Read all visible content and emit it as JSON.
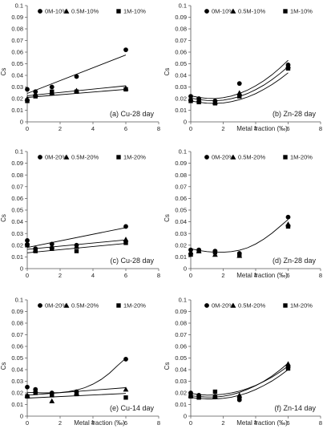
{
  "figure_type": "six-panel chart grid",
  "chart_data": [
    {
      "type": "scatter",
      "panel": "a",
      "annotation": "(a) Cu-28 day",
      "xlabel": "",
      "ylabel": "Cs",
      "xlim": [
        0,
        8
      ],
      "ylim": [
        0,
        0.1
      ],
      "xticks": [
        "0",
        "2",
        "4",
        "6",
        "8"
      ],
      "yticks": [
        "0",
        "0.01",
        "0.02",
        "0.03",
        "0.04",
        "0.05",
        "0.06",
        "0.07",
        "0.08",
        "0.09",
        "0.1"
      ],
      "legend_position": "top",
      "series": [
        {
          "name": "0M-10%",
          "marker": "circle",
          "x": [
            0,
            0.5,
            1.5,
            3,
            6
          ],
          "y": [
            0.028,
            0.026,
            0.03,
            0.039,
            0.062
          ],
          "trend": {
            "kind": "linear",
            "x": [
              0,
              6
            ],
            "y": [
              0.0245,
              0.0575
            ]
          }
        },
        {
          "name": "0.5M-10%",
          "marker": "triangle",
          "x": [
            0,
            0.5,
            1.5,
            3,
            6
          ],
          "y": [
            0.02,
            0.024,
            0.025,
            0.027,
            0.029
          ],
          "trend": {
            "kind": "linear",
            "x": [
              0,
              6
            ],
            "y": [
              0.0225,
              0.031
            ]
          }
        },
        {
          "name": "1M-10%",
          "marker": "square",
          "x": [
            0,
            0.5,
            1.5,
            3,
            6
          ],
          "y": [
            0.018,
            0.022,
            0.026,
            0.026,
            0.028
          ],
          "trend": {
            "kind": "linear",
            "x": [
              0,
              6
            ],
            "y": [
              0.021,
              0.028
            ]
          }
        }
      ]
    },
    {
      "type": "scatter",
      "panel": "b",
      "annotation": "(b) Zn-28 day",
      "xlabel": "Metal fraction (‰)",
      "ylabel": "Cs",
      "xlim": [
        0,
        8
      ],
      "ylim": [
        0,
        0.1
      ],
      "xticks": [
        "0",
        "2",
        "4",
        "6",
        "8"
      ],
      "yticks": [
        "0",
        "0.01",
        "0.02",
        "0.03",
        "0.04",
        "0.05",
        "0.06",
        "0.07",
        "0.08",
        "0.09",
        "0.1"
      ],
      "legend_position": "top",
      "series": [
        {
          "name": "0M-10%",
          "marker": "circle",
          "x": [
            0,
            0.5,
            1.5,
            3,
            6
          ],
          "y": [
            0.022,
            0.02,
            0.018,
            0.033,
            0.049
          ],
          "trend": {
            "kind": "polynomial",
            "x": [
              0,
              0.5,
              1,
              1.5,
              2,
              2.5,
              3,
              3.5,
              4,
              4.5,
              5,
              5.5,
              6
            ],
            "y": [
              0.0225,
              0.021,
              0.0202,
              0.0201,
              0.0208,
              0.0222,
              0.0244,
              0.0273,
              0.031,
              0.0354,
              0.0405,
              0.0464,
              0.053
            ]
          }
        },
        {
          "name": "0.5M-10%",
          "marker": "triangle",
          "x": [
            0,
            0.5,
            1.5,
            3,
            6
          ],
          "y": [
            0.02,
            0.019,
            0.017,
            0.025,
            0.048
          ],
          "trend": {
            "kind": "polynomial",
            "x": [
              0,
              0.5,
              1,
              1.5,
              2,
              2.5,
              3,
              3.5,
              4,
              4.5,
              5,
              5.5,
              6
            ],
            "y": [
              0.0205,
              0.0192,
              0.0184,
              0.0182,
              0.0187,
              0.0199,
              0.0218,
              0.0244,
              0.0277,
              0.0316,
              0.0363,
              0.0416,
              0.0475
            ]
          }
        },
        {
          "name": "1M-10%",
          "marker": "square",
          "x": [
            0,
            0.5,
            1.5,
            3,
            6
          ],
          "y": [
            0.018,
            0.017,
            0.016,
            0.022,
            0.046
          ],
          "trend": {
            "kind": "polynomial",
            "x": [
              0,
              0.5,
              1,
              1.5,
              2,
              2.5,
              3,
              3.5,
              4,
              4.5,
              5,
              5.5,
              6
            ],
            "y": [
              0.018,
              0.0168,
              0.0161,
              0.0159,
              0.0163,
              0.0174,
              0.0191,
              0.0214,
              0.0243,
              0.0279,
              0.0321,
              0.0368,
              0.0422
            ]
          }
        }
      ]
    },
    {
      "type": "scatter",
      "panel": "c",
      "annotation": "(c) Cu-28 day",
      "xlabel": "",
      "ylabel": "Cs",
      "xlim": [
        0,
        8
      ],
      "ylim": [
        0,
        0.1
      ],
      "xticks": [
        "0",
        "2",
        "4",
        "6",
        "8"
      ],
      "yticks": [
        "0",
        "0.01",
        "0.02",
        "0.03",
        "0.04",
        "0.05",
        "0.06",
        "0.07",
        "0.08",
        "0.09",
        "0.1"
      ],
      "legend_position": "top",
      "series": [
        {
          "name": "0M-20%",
          "marker": "circle",
          "x": [
            0,
            0.5,
            1.5,
            3,
            6
          ],
          "y": [
            0.024,
            0.017,
            0.021,
            0.02,
            0.036
          ],
          "trend": {
            "kind": "linear",
            "x": [
              0,
              6
            ],
            "y": [
              0.018,
              0.035
            ]
          }
        },
        {
          "name": "0.5M-20%",
          "marker": "triangle",
          "x": [
            0,
            0.5,
            1.5,
            3,
            6
          ],
          "y": [
            0.022,
            0.016,
            0.019,
            0.019,
            0.025
          ],
          "trend": {
            "kind": "linear",
            "x": [
              0,
              6
            ],
            "y": [
              0.0165,
              0.0245
            ]
          }
        },
        {
          "name": "1M-20%",
          "marker": "square",
          "x": [
            0,
            0.5,
            1.5,
            3,
            6
          ],
          "y": [
            0.02,
            0.015,
            0.017,
            0.015,
            0.022
          ],
          "trend": {
            "kind": "linear",
            "x": [
              0,
              6
            ],
            "y": [
              0.0135,
              0.0215
            ]
          }
        }
      ]
    },
    {
      "type": "scatter",
      "panel": "d",
      "annotation": "(d) Zn-28 day",
      "xlabel": "Metal fraction (‰)",
      "ylabel": "Cs",
      "xlim": [
        0,
        8
      ],
      "ylim": [
        0,
        0.1
      ],
      "xticks": [
        "0",
        "2",
        "4",
        "6",
        "8"
      ],
      "yticks": [
        "0",
        "0.01",
        "0.02",
        "0.03",
        "0.04",
        "0.05",
        "0.06",
        "0.07",
        "0.08",
        "0.09",
        "0.1"
      ],
      "legend_position": "top",
      "series": [
        {
          "name": "0M-20%",
          "marker": "circle",
          "x": [
            0,
            0.5,
            1.5,
            3,
            6
          ],
          "y": [
            0.016,
            0.016,
            0.015,
            0.013,
            0.044
          ],
          "trend": {
            "kind": "polynomial",
            "x": [
              0,
              0.5,
              1,
              1.5,
              2,
              2.5,
              3,
              3.5,
              4,
              4.5,
              5,
              5.5,
              6
            ],
            "y": [
              0.017,
              0.0155,
              0.0145,
              0.014,
              0.014,
              0.0145,
              0.0157,
              0.0178,
              0.021,
              0.0252,
              0.0302,
              0.036,
              0.042
            ]
          }
        },
        {
          "name": "0.5M-20%",
          "marker": "triangle",
          "x": [
            0,
            0.5,
            1.5,
            3,
            6
          ],
          "y": [
            0.014,
            0.015,
            0.012,
            0.011,
            0.038
          ],
          "trend": null
        },
        {
          "name": "1M-20%",
          "marker": "square",
          "x": [
            0,
            0.5,
            1.5,
            3,
            6
          ],
          "y": [
            0.012,
            0.015,
            0.014,
            0.012,
            0.036
          ],
          "trend": null
        }
      ]
    },
    {
      "type": "scatter",
      "panel": "e",
      "annotation": "(e) Cu-14 day",
      "xlabel": "Metal fraction (‰)",
      "ylabel": "Cs",
      "xlim": [
        0,
        8
      ],
      "ylim": [
        0,
        0.1
      ],
      "xticks": [
        "0",
        "2",
        "4",
        "6",
        "8"
      ],
      "yticks": [
        "0",
        "0.01",
        "0.02",
        "0.03",
        "0.04",
        "0.05",
        "0.06",
        "0.07",
        "0.08",
        "0.09",
        "0.1"
      ],
      "legend_position": "top",
      "series": [
        {
          "name": "0M-20%",
          "marker": "circle",
          "x": [
            0,
            0.5,
            1.5,
            3,
            6
          ],
          "y": [
            0.025,
            0.023,
            0.02,
            0.021,
            0.049
          ],
          "trend": {
            "kind": "polynomial",
            "x": [
              0,
              0.5,
              1,
              1.5,
              2,
              2.5,
              3,
              3.5,
              4,
              4.5,
              5,
              5.5,
              6
            ],
            "y": [
              0.0205,
              0.0202,
              0.02,
              0.02,
              0.0203,
              0.0211,
              0.0224,
              0.0245,
              0.0275,
              0.0316,
              0.0369,
              0.0436,
              0.0498
            ]
          }
        },
        {
          "name": "0.5M-20%",
          "marker": "triangle",
          "x": [
            0,
            0.5,
            1.5,
            3,
            6
          ],
          "y": [
            0.018,
            0.022,
            0.013,
            0.02,
            0.023
          ],
          "trend": {
            "kind": "linear",
            "x": [
              0,
              6
            ],
            "y": [
              0.018,
              0.0245
            ]
          }
        },
        {
          "name": "1M-20%",
          "marker": "square",
          "x": [
            0,
            0.5,
            1.5,
            3,
            6
          ],
          "y": [
            0.017,
            0.02,
            0.018,
            0.019,
            0.016
          ],
          "trend": {
            "kind": "linear",
            "x": [
              0,
              6
            ],
            "y": [
              0.0155,
              0.0195
            ]
          }
        }
      ]
    },
    {
      "type": "scatter",
      "panel": "f",
      "annotation": "(f) Zn-14 day",
      "xlabel": "Metal fraction (‰)",
      "ylabel": "Cs",
      "xlim": [
        0,
        8
      ],
      "ylim": [
        0,
        0.1
      ],
      "xticks": [
        "0",
        "2",
        "4",
        "6",
        "8"
      ],
      "yticks": [
        "0",
        "0.01",
        "0.02",
        "0.03",
        "0.04",
        "0.05",
        "0.06",
        "0.07",
        "0.08",
        "0.09",
        "0.1"
      ],
      "legend_position": "top",
      "series": [
        {
          "name": "0M-20%",
          "marker": "circle",
          "x": [
            0,
            0.5,
            1.5,
            3,
            6
          ],
          "y": [
            0.02,
            0.018,
            0.017,
            0.014,
            0.042
          ],
          "trend": {
            "kind": "polynomial",
            "x": [
              0,
              0.5,
              1,
              1.5,
              2,
              2.5,
              3,
              3.5,
              4,
              4.5,
              5,
              5.5,
              6
            ],
            "y": [
              0.0195,
              0.0186,
              0.0181,
              0.0182,
              0.0188,
              0.0199,
              0.0215,
              0.0237,
              0.0264,
              0.0297,
              0.0335,
              0.038,
              0.043
            ]
          }
        },
        {
          "name": "0.5M-20%",
          "marker": "triangle",
          "x": [
            0,
            0.5,
            1.5,
            3,
            6
          ],
          "y": [
            0.018,
            0.017,
            0.017,
            0.018,
            0.045
          ],
          "trend": {
            "kind": "polynomial",
            "x": [
              0,
              0.5,
              1,
              1.5,
              2,
              2.5,
              3,
              3.5,
              4,
              4.5,
              5,
              5.5,
              6
            ],
            "y": [
              0.0175,
              0.0168,
              0.0164,
              0.0164,
              0.0171,
              0.0184,
              0.0204,
              0.023,
              0.0262,
              0.03,
              0.0345,
              0.0397,
              0.0456
            ]
          }
        },
        {
          "name": "1M-20%",
          "marker": "square",
          "x": [
            0,
            0.5,
            1.5,
            3,
            6
          ],
          "y": [
            0.017,
            0.016,
            0.021,
            0.015,
            0.041
          ],
          "trend": {
            "kind": "polynomial",
            "x": [
              0,
              0.5,
              1,
              1.5,
              2,
              2.5,
              3,
              3.5,
              4,
              4.5,
              5,
              5.5,
              6
            ],
            "y": [
              0.016,
              0.0153,
              0.0148,
              0.0148,
              0.0153,
              0.0163,
              0.0179,
              0.0201,
              0.0229,
              0.0263,
              0.0302,
              0.0348,
              0.04
            ]
          }
        }
      ]
    }
  ]
}
